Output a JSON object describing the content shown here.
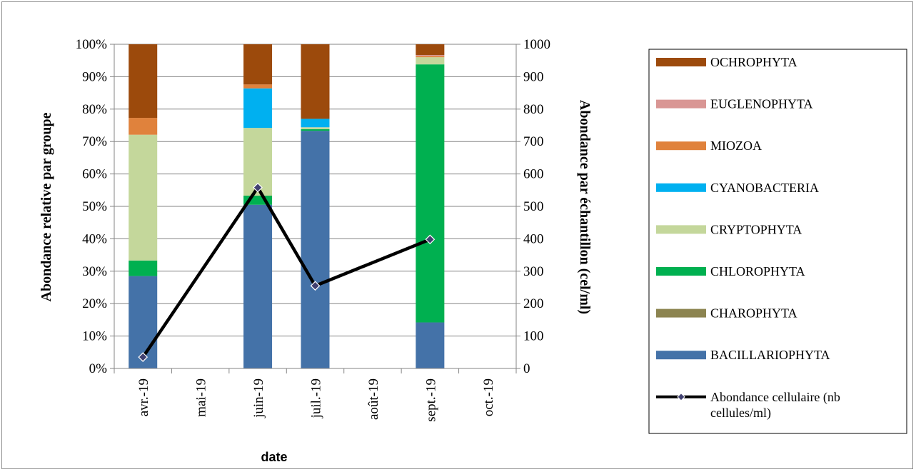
{
  "chart_data": {
    "type": "bar",
    "stacked": true,
    "normalized": true,
    "title": "",
    "xlabel": "date",
    "ylabel": "Abondance relative par groupe",
    "y2label": "Abondance par échantillon (cel/ml)",
    "ylim": [
      0,
      100
    ],
    "y2lim": [
      0,
      1000
    ],
    "yticks": [
      "0%",
      "10%",
      "20%",
      "30%",
      "40%",
      "50%",
      "60%",
      "70%",
      "80%",
      "90%",
      "100%"
    ],
    "y2ticks": [
      "0",
      "100",
      "200",
      "300",
      "400",
      "500",
      "600",
      "700",
      "800",
      "900",
      "1000"
    ],
    "categories": [
      "avr.-19",
      "mai-19",
      "juin-19",
      "juil.-19",
      "août-19",
      "sept.-19",
      "oct.-19"
    ],
    "series": [
      {
        "name": "BACILLARIOPHYTA",
        "color": "#4472a8",
        "values": [
          28.5,
          0,
          50.5,
          73.3,
          0,
          14.2,
          0
        ]
      },
      {
        "name": "CHAROPHYTA",
        "color": "#8c8450",
        "values": [
          0,
          0,
          0,
          0,
          0,
          0,
          0
        ]
      },
      {
        "name": "CHLOROPHYTA",
        "color": "#00b050",
        "values": [
          4.8,
          0,
          2.8,
          0.5,
          0,
          79.6,
          0
        ]
      },
      {
        "name": "CRYPTOPHYTA",
        "color": "#c4d79b",
        "values": [
          38.8,
          0,
          20.9,
          0.6,
          0,
          2.2,
          0
        ]
      },
      {
        "name": "CYANOBACTERIA",
        "color": "#00b0f0",
        "values": [
          0,
          0,
          12.2,
          2.6,
          0,
          0,
          0
        ]
      },
      {
        "name": "MIOZOA",
        "color": "#e0823c",
        "values": [
          5.2,
          0,
          1.2,
          0,
          0,
          0.4,
          0
        ]
      },
      {
        "name": "EUGLENOPHYTA",
        "color": "#d99694",
        "values": [
          0,
          0,
          0,
          0,
          0,
          0.3,
          0
        ]
      },
      {
        "name": "OCHROPHYTA",
        "color": "#9c4a0c",
        "values": [
          22.7,
          0,
          12.4,
          23.0,
          0,
          3.3,
          0
        ]
      }
    ],
    "line_series": {
      "name": "Abondance cellulaire (nb cellules/ml)",
      "axis": "right",
      "color": "#000000",
      "points": [
        {
          "category": "avr.-19",
          "value": 35
        },
        {
          "category": "juin-19",
          "value": 558
        },
        {
          "category": "juil.-19",
          "value": 255
        },
        {
          "category": "sept.-19",
          "value": 398
        }
      ]
    },
    "legend_position": "right",
    "legend_order": [
      "OCHROPHYTA",
      "EUGLENOPHYTA",
      "MIOZOA",
      "CYANOBACTERIA",
      "CRYPTOPHYTA",
      "CHLOROPHYTA",
      "CHAROPHYTA",
      "BACILLARIOPHYTA",
      "Abondance cellulaire (nb cellules/ml)"
    ],
    "grid": true
  }
}
